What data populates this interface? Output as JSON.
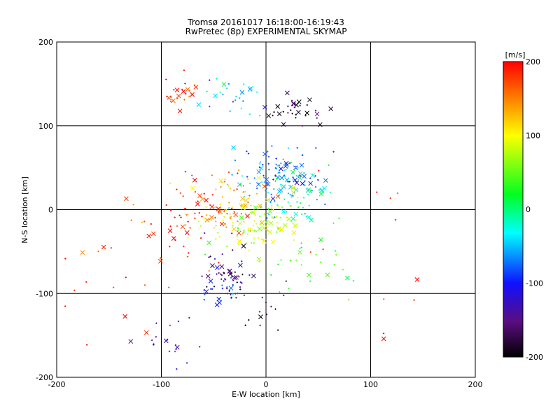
{
  "chart_data": {
    "type": "scatter",
    "title": "Tromsø 20161017 16:18:00-16:19:43",
    "subtitle": "RwPretec (8p) EXPERIMENTAL SKYMAP",
    "xlabel": "E-W location [km]",
    "ylabel": "N-S location [km]",
    "xlim": [
      -200,
      200
    ],
    "ylim": [
      -200,
      200
    ],
    "xticks": [
      "-200",
      "-100",
      "0",
      "100",
      "200"
    ],
    "yticks": [
      "-200",
      "-100",
      "0",
      "100",
      "200"
    ],
    "grid": true,
    "colorbar": {
      "label": "[m/s]",
      "range": [
        -200,
        200
      ],
      "ticks": [
        "200",
        "100",
        "0",
        "-100",
        "-200"
      ],
      "colormap": "rainbow (black-purple-blue-cyan-green-yellow-red)"
    },
    "markers": {
      "dot": "small plus",
      "cross": "x"
    },
    "clusters": [
      {
        "cx": -82,
        "cy": 138,
        "sx": 10,
        "sy": 7,
        "v": 185,
        "n": 25
      },
      {
        "cx": -30,
        "cy": 140,
        "sx": 18,
        "sy": 10,
        "v": -40,
        "n": 25
      },
      {
        "cx": 25,
        "cy": 118,
        "sx": 18,
        "sy": 9,
        "v": -180,
        "n": 35
      },
      {
        "cx": 15,
        "cy": 35,
        "sx": 20,
        "sy": 18,
        "v": -70,
        "n": 110
      },
      {
        "cx": 30,
        "cy": 20,
        "sx": 25,
        "sy": 22,
        "v": -20,
        "n": 60
      },
      {
        "cx": -10,
        "cy": -15,
        "sx": 22,
        "sy": 18,
        "v": 80,
        "n": 130
      },
      {
        "cx": -35,
        "cy": 10,
        "sx": 18,
        "sy": 18,
        "v": 140,
        "n": 60
      },
      {
        "cx": -80,
        "cy": -10,
        "sx": 25,
        "sy": 30,
        "v": 190,
        "n": 55
      },
      {
        "cx": -40,
        "cy": -75,
        "sx": 14,
        "sy": 15,
        "v": -160,
        "n": 45
      },
      {
        "cx": -42,
        "cy": -100,
        "sx": 12,
        "sy": 10,
        "v": -90,
        "n": 25
      },
      {
        "cx": 0,
        "cy": -110,
        "sx": 15,
        "sy": 20,
        "v": -190,
        "n": 15
      },
      {
        "cx": -90,
        "cy": -165,
        "sx": 15,
        "sy": 15,
        "v": -130,
        "n": 18
      },
      {
        "cx": 45,
        "cy": -60,
        "sx": 30,
        "sy": 25,
        "v": 30,
        "n": 25
      },
      {
        "cx": 120,
        "cy": -40,
        "sx": 60,
        "sy": 60,
        "v": 200,
        "n": 14
      },
      {
        "cx": -140,
        "cy": -60,
        "sx": 40,
        "sy": 60,
        "v": 180,
        "n": 25
      }
    ]
  }
}
